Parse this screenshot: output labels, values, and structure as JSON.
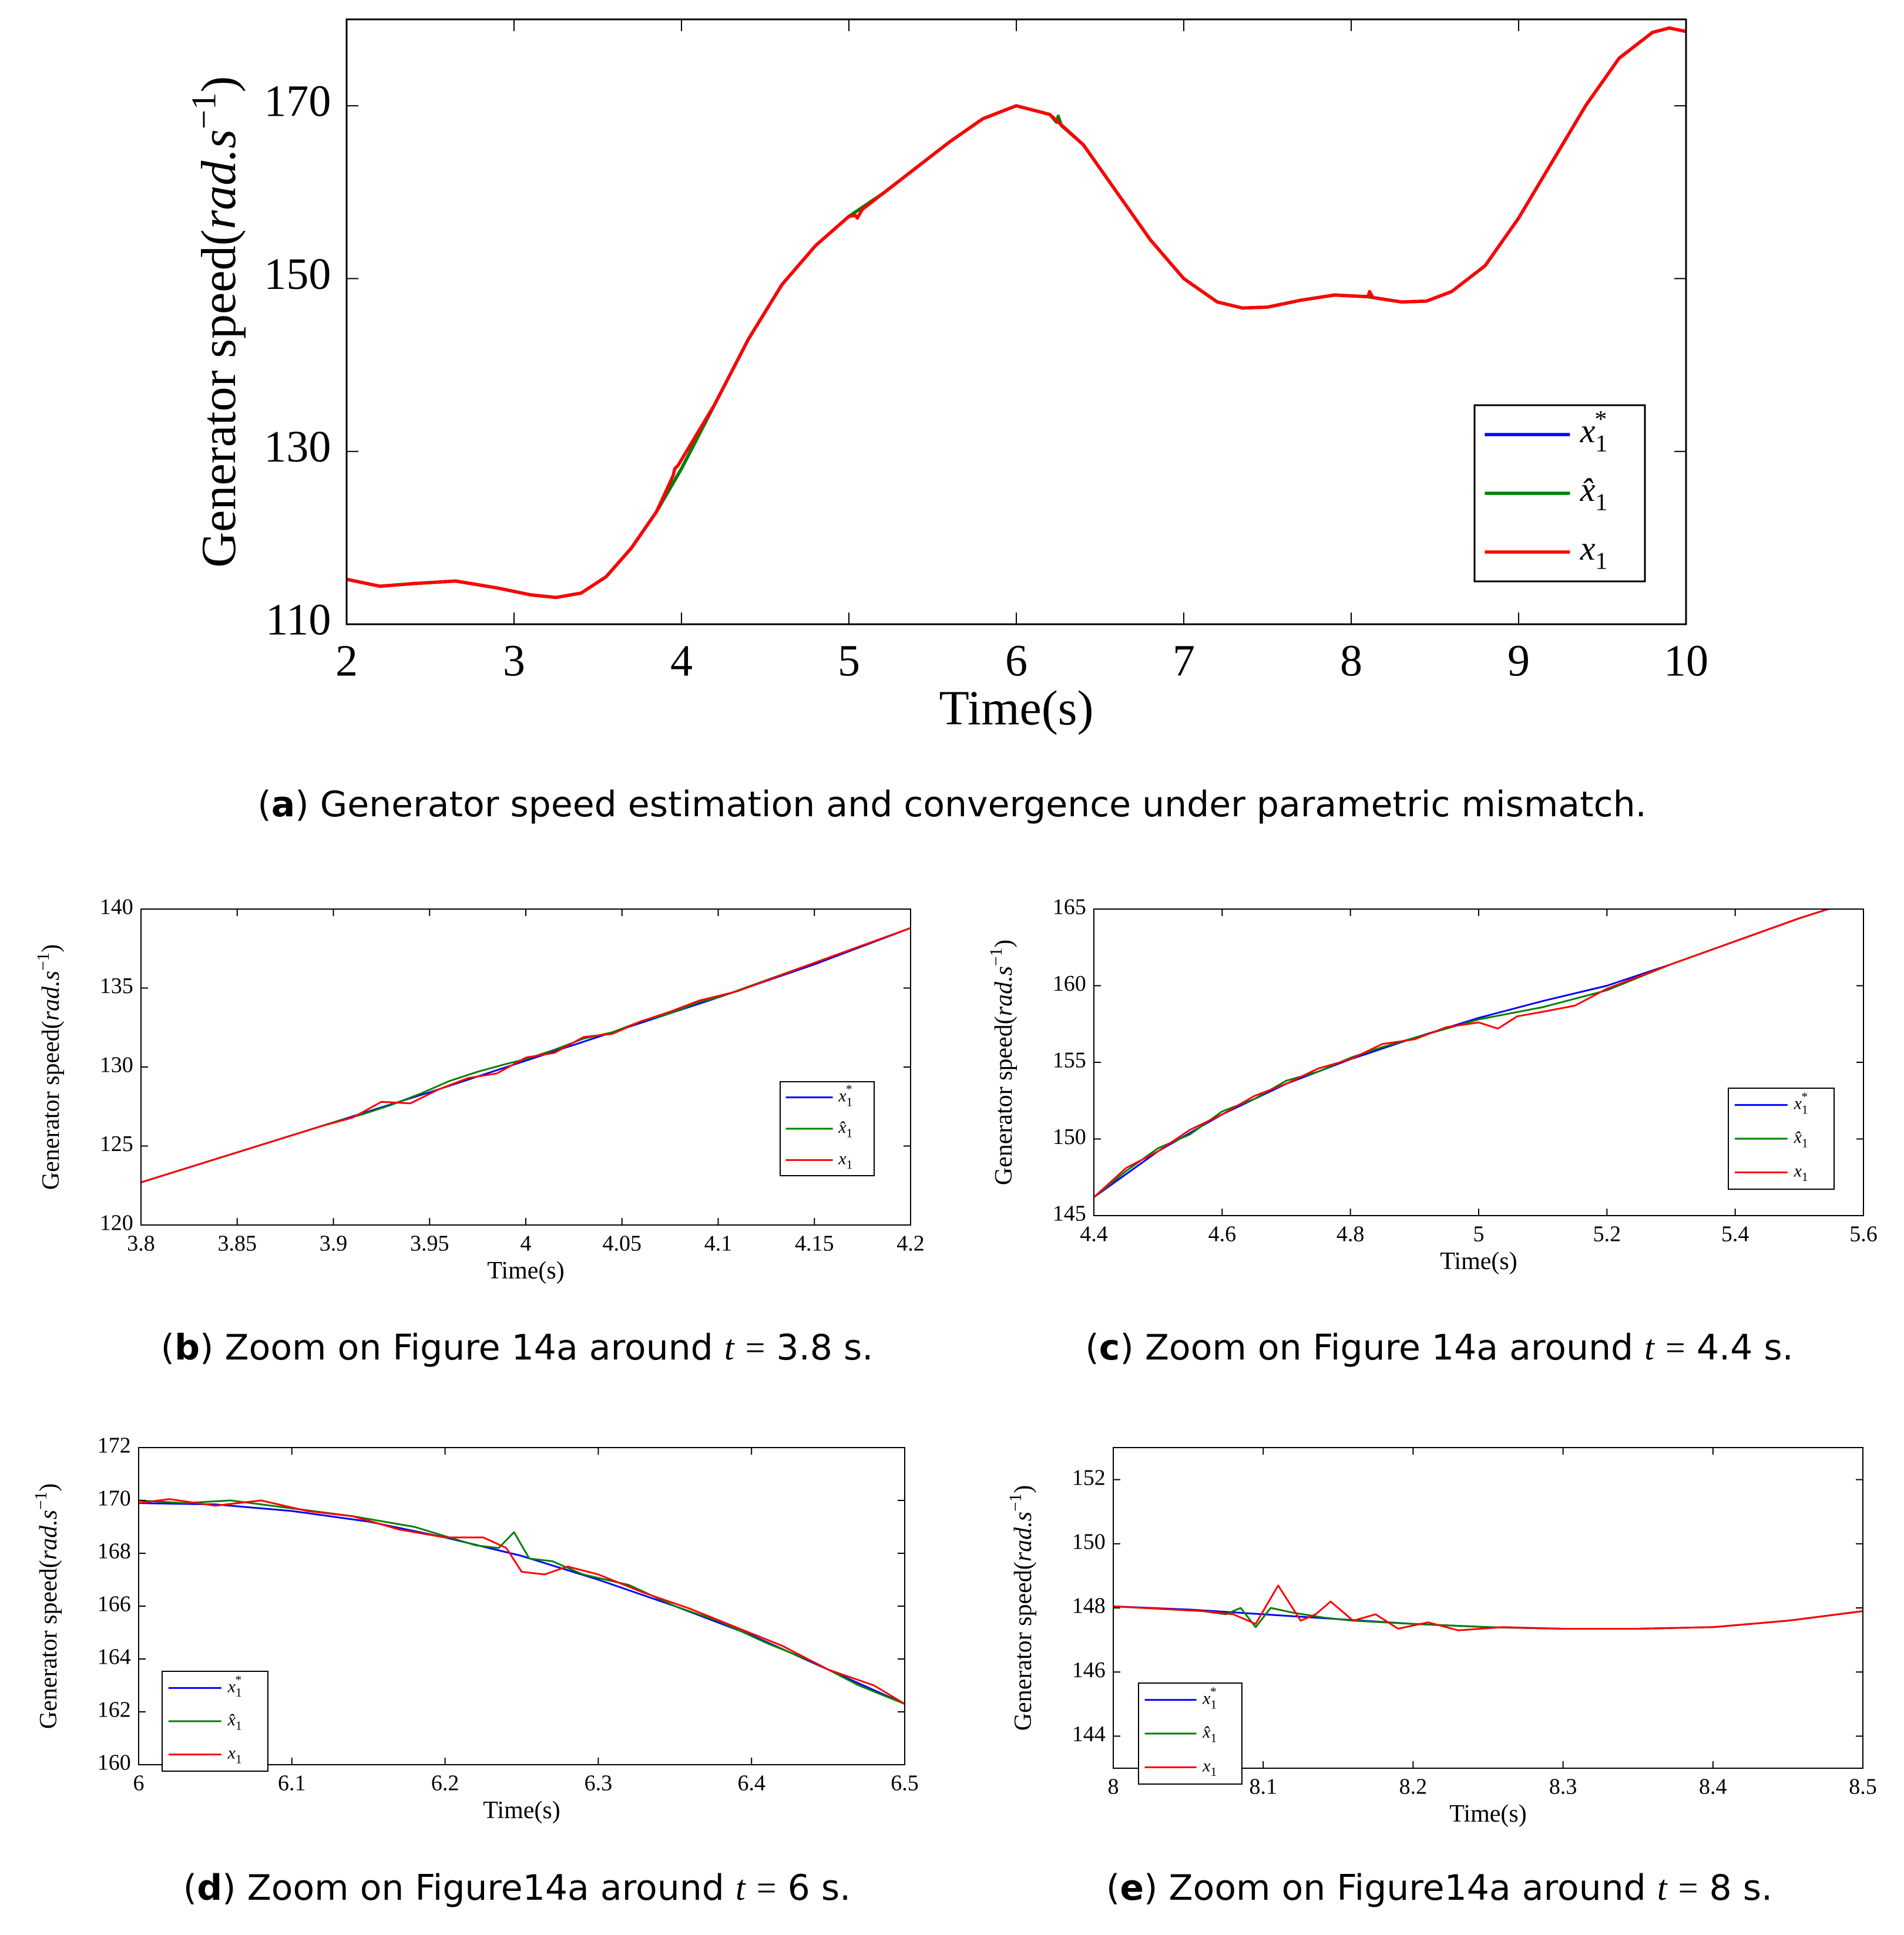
{
  "colors": {
    "ref": "#0000ff",
    "est": "#008000",
    "act": "#ff0000",
    "axis": "#000000",
    "background": "#ffffff"
  },
  "legend": {
    "ref": {
      "base": "x",
      "sub": "1",
      "sup": "*"
    },
    "est": {
      "base": "x̂",
      "sub": "1"
    },
    "act": {
      "base": "x",
      "sub": "1"
    }
  },
  "captions": {
    "a": {
      "letter": "a",
      "text": "Generator speed estimation and convergence under parametric mismatch."
    },
    "b": {
      "letter": "b",
      "pre": "Zoom on Figure 14a around",
      "var": "t",
      "op": "=",
      "post": "3.8 s."
    },
    "c": {
      "letter": "c",
      "pre": "Zoom on Figure 14a around",
      "var": "t",
      "op": "=",
      "post": "4.4 s."
    },
    "d": {
      "letter": "d",
      "pre": "Zoom on Figure14a around",
      "var": "t",
      "op": "=",
      "post": "6 s."
    },
    "e": {
      "letter": "e",
      "pre": "Zoom on Figure14a around",
      "var": "t",
      "op": "=",
      "post": "8 s."
    }
  },
  "chart_data": [
    {
      "id": "a",
      "type": "line",
      "title": "",
      "xlabel": "Time(s)",
      "ylabel": {
        "text": "Generator speed",
        "unit": "rad.s",
        "exp": "−1"
      },
      "xlim": [
        2,
        10
      ],
      "ylim": [
        110,
        180
      ],
      "xticks": [
        2,
        3,
        4,
        5,
        6,
        7,
        8,
        9,
        10
      ],
      "yticks": [
        110,
        130,
        150,
        170
      ],
      "xtick_labels": [
        "2",
        "3",
        "4",
        "5",
        "6",
        "7",
        "8",
        "9",
        "10"
      ],
      "ytick_labels": [
        "110",
        "130",
        "150",
        "170"
      ],
      "legend_position": "bottom-right",
      "series": [
        {
          "name": "x1*",
          "key": "ref",
          "x": [
            2.0,
            2.2,
            2.4,
            2.65,
            2.9,
            3.1,
            3.25,
            3.4,
            3.55,
            3.7,
            3.85,
            4.0,
            4.2,
            4.4,
            4.6,
            4.8,
            5.0,
            5.2,
            5.4,
            5.6,
            5.8,
            6.0,
            6.2,
            6.4,
            6.6,
            6.8,
            7.0,
            7.2,
            7.35,
            7.5,
            7.7,
            7.9,
            8.1,
            8.3,
            8.45,
            8.6,
            8.8,
            9.0,
            9.2,
            9.4,
            9.6,
            9.8,
            9.9,
            10.0
          ],
          "y": [
            115.2,
            114.4,
            114.7,
            115.0,
            114.2,
            113.4,
            113.1,
            113.6,
            115.5,
            118.8,
            123.0,
            128.0,
            135.5,
            143.0,
            149.3,
            153.8,
            157.2,
            159.8,
            162.8,
            165.8,
            168.5,
            170.0,
            169.0,
            165.5,
            160.0,
            154.5,
            150.0,
            147.3,
            146.6,
            146.7,
            147.5,
            148.1,
            147.9,
            147.3,
            147.4,
            148.5,
            151.5,
            157.0,
            163.5,
            170.0,
            175.5,
            178.5,
            179.0,
            178.6
          ]
        },
        {
          "name": "x̂1",
          "key": "est",
          "x": [
            2.0,
            2.2,
            2.4,
            2.65,
            2.9,
            3.1,
            3.25,
            3.4,
            3.55,
            3.7,
            3.85,
            4.0,
            4.2,
            4.4,
            4.6,
            4.8,
            5.0,
            5.2,
            5.4,
            5.6,
            5.8,
            6.0,
            6.2,
            6.24,
            6.25,
            6.27,
            6.4,
            6.6,
            6.8,
            7.0,
            7.2,
            7.35,
            7.5,
            7.7,
            7.9,
            8.1,
            8.3,
            8.45,
            8.6,
            8.8,
            9.0,
            9.2,
            9.4,
            9.6,
            9.8,
            9.9,
            10.0
          ],
          "y": [
            115.2,
            114.4,
            114.7,
            115.0,
            114.2,
            113.4,
            113.1,
            113.6,
            115.5,
            118.8,
            123.0,
            128.0,
            135.5,
            143.0,
            149.3,
            153.8,
            157.2,
            159.8,
            162.8,
            165.8,
            168.5,
            170.0,
            169.0,
            168.1,
            168.8,
            167.7,
            165.5,
            160.0,
            154.5,
            150.0,
            147.3,
            146.6,
            146.7,
            147.5,
            148.1,
            147.9,
            147.3,
            147.4,
            148.5,
            151.5,
            157.0,
            163.5,
            170.0,
            175.5,
            178.5,
            179.0,
            178.6
          ]
        },
        {
          "name": "x1",
          "key": "act",
          "x": [
            2.0,
            2.2,
            2.4,
            2.65,
            2.9,
            3.1,
            3.25,
            3.4,
            3.55,
            3.7,
            3.85,
            3.95,
            3.96,
            3.98,
            4.2,
            4.4,
            4.6,
            4.8,
            5.0,
            5.04,
            5.05,
            5.08,
            5.2,
            5.4,
            5.6,
            5.8,
            6.0,
            6.2,
            6.4,
            6.6,
            6.8,
            7.0,
            7.2,
            7.35,
            7.5,
            7.7,
            7.9,
            8.1,
            8.11,
            8.13,
            8.3,
            8.45,
            8.6,
            8.8,
            9.0,
            9.2,
            9.4,
            9.6,
            9.8,
            9.9,
            10.0
          ],
          "y": [
            115.2,
            114.4,
            114.7,
            115.0,
            114.2,
            113.4,
            113.1,
            113.6,
            115.5,
            118.8,
            123.0,
            127.2,
            128.0,
            128.4,
            135.5,
            143.0,
            149.3,
            153.8,
            157.2,
            157.3,
            157.0,
            158.0,
            159.8,
            162.8,
            165.8,
            168.5,
            170.0,
            169.0,
            165.5,
            160.0,
            154.5,
            150.0,
            147.3,
            146.6,
            146.7,
            147.5,
            148.1,
            147.9,
            148.5,
            147.8,
            147.3,
            147.4,
            148.5,
            151.5,
            157.0,
            163.5,
            170.0,
            175.5,
            178.5,
            179.0,
            178.6
          ]
        }
      ]
    },
    {
      "id": "b",
      "type": "line",
      "title": "",
      "xlabel": "Time(s)",
      "ylabel": {
        "text": "Generator speed",
        "unit": "rad.s",
        "exp": "−1"
      },
      "xlim": [
        3.8,
        4.2
      ],
      "ylim": [
        120,
        140
      ],
      "xticks": [
        3.8,
        3.85,
        3.9,
        3.95,
        4.0,
        4.05,
        4.1,
        4.15,
        4.2
      ],
      "yticks": [
        120,
        125,
        130,
        135,
        140
      ],
      "xtick_labels": [
        "3.8",
        "3.85",
        "3.9",
        "3.95",
        "4",
        "4.05",
        "4.1",
        "4.15",
        "4.2"
      ],
      "ytick_labels": [
        "120",
        "125",
        "130",
        "135",
        "140"
      ],
      "legend_position": "right",
      "series": [
        {
          "name": "x1*",
          "key": "ref",
          "x": [
            3.8,
            3.85,
            3.9,
            3.95,
            4.0,
            4.05,
            4.1,
            4.15,
            4.2
          ],
          "y": [
            122.7,
            124.6,
            126.5,
            128.4,
            130.4,
            132.4,
            134.4,
            136.5,
            138.8
          ]
        },
        {
          "name": "x̂1",
          "key": "est",
          "x": [
            3.8,
            3.85,
            3.9,
            3.915,
            3.93,
            3.945,
            3.96,
            3.975,
            3.99,
            4.0,
            4.015,
            4.03,
            4.045,
            4.06,
            4.075,
            4.09,
            4.1,
            4.15,
            4.2
          ],
          "y": [
            122.7,
            124.6,
            126.5,
            127.0,
            127.6,
            128.3,
            129.1,
            129.7,
            130.2,
            130.5,
            131.1,
            131.8,
            132.2,
            132.9,
            133.4,
            134.1,
            134.4,
            136.6,
            138.8
          ]
        },
        {
          "name": "x1",
          "key": "act",
          "x": [
            3.8,
            3.85,
            3.895,
            3.91,
            3.925,
            3.94,
            3.955,
            3.97,
            3.985,
            4.0,
            4.015,
            4.03,
            4.045,
            4.06,
            4.075,
            4.09,
            4.11,
            4.15,
            4.2
          ],
          "y": [
            122.7,
            124.6,
            126.3,
            126.8,
            127.8,
            127.7,
            128.6,
            129.3,
            129.6,
            130.6,
            130.9,
            131.9,
            132.1,
            132.9,
            133.5,
            134.2,
            134.8,
            136.6,
            138.8
          ]
        }
      ]
    },
    {
      "id": "c",
      "type": "line",
      "title": "",
      "xlabel": "Time(s)",
      "ylabel": {
        "text": "Generator speed",
        "unit": "rad.s",
        "exp": "−1"
      },
      "xlim": [
        4.4,
        5.6
      ],
      "ylim": [
        145,
        165
      ],
      "xticks": [
        4.4,
        4.6,
        4.8,
        5.0,
        5.2,
        5.4,
        5.6
      ],
      "yticks": [
        145,
        150,
        155,
        160,
        165
      ],
      "xtick_labels": [
        "4.4",
        "4.6",
        "4.8",
        "5",
        "5.2",
        "5.4",
        "5.6"
      ],
      "ytick_labels": [
        "145",
        "150",
        "155",
        "160",
        "165"
      ],
      "legend_position": "right",
      "series": [
        {
          "name": "x1*",
          "key": "ref",
          "x": [
            4.4,
            4.5,
            4.6,
            4.7,
            4.8,
            4.9,
            5.0,
            5.1,
            5.2,
            5.3,
            5.4,
            5.5,
            5.56
          ],
          "y": [
            146.2,
            149.2,
            151.6,
            153.6,
            155.2,
            156.6,
            157.9,
            159.0,
            160.0,
            161.4,
            162.9,
            164.4,
            165.2
          ]
        },
        {
          "name": "x̂1",
          "key": "est",
          "x": [
            4.4,
            4.45,
            4.5,
            4.55,
            4.6,
            4.65,
            4.7,
            4.75,
            4.8,
            4.85,
            4.9,
            4.95,
            5.0,
            5.1,
            5.2,
            5.3,
            5.4,
            5.5,
            5.56
          ],
          "y": [
            146.2,
            147.9,
            149.4,
            150.3,
            151.8,
            152.6,
            153.8,
            154.4,
            155.3,
            156.0,
            156.6,
            157.2,
            157.8,
            158.6,
            159.7,
            161.4,
            162.9,
            164.4,
            165.2
          ]
        },
        {
          "name": "x1",
          "key": "act",
          "x": [
            4.4,
            4.45,
            4.5,
            4.55,
            4.6,
            4.65,
            4.7,
            4.75,
            4.8,
            4.85,
            4.9,
            4.95,
            5.0,
            5.03,
            5.06,
            5.1,
            5.15,
            5.2,
            5.3,
            5.4,
            5.5,
            5.56
          ],
          "y": [
            146.2,
            148.1,
            149.2,
            150.6,
            151.6,
            152.8,
            153.6,
            154.6,
            155.2,
            156.2,
            156.5,
            157.3,
            157.6,
            157.2,
            158.0,
            158.3,
            158.7,
            159.8,
            161.4,
            162.9,
            164.4,
            165.2
          ]
        }
      ]
    },
    {
      "id": "d",
      "type": "line",
      "title": "",
      "xlabel": "Time(s)",
      "ylabel": {
        "text": "Generator speed",
        "unit": "rad.s",
        "exp": "−1"
      },
      "xlim": [
        6.0,
        6.5
      ],
      "ylim": [
        160,
        172
      ],
      "xticks": [
        6.0,
        6.1,
        6.2,
        6.3,
        6.4,
        6.5
      ],
      "yticks": [
        160,
        162,
        164,
        166,
        168,
        170,
        172
      ],
      "xtick_labels": [
        "6",
        "6.1",
        "6.2",
        "6.3",
        "6.4",
        "6.5"
      ],
      "ytick_labels": [
        "160",
        "162",
        "164",
        "166",
        "168",
        "170",
        "172"
      ],
      "legend_position": "bottom-left",
      "series": [
        {
          "name": "x1*",
          "key": "ref",
          "x": [
            6.0,
            6.05,
            6.1,
            6.15,
            6.2,
            6.25,
            6.3,
            6.35,
            6.4,
            6.45,
            6.5
          ],
          "y": [
            169.9,
            169.85,
            169.6,
            169.2,
            168.6,
            167.9,
            167.0,
            166.0,
            164.9,
            163.6,
            162.3
          ]
        },
        {
          "name": "x̂1",
          "key": "est",
          "x": [
            6.0,
            6.03,
            6.06,
            6.1,
            6.14,
            6.18,
            6.22,
            6.235,
            6.245,
            6.255,
            6.27,
            6.29,
            6.32,
            6.35,
            6.38,
            6.41,
            6.44,
            6.47,
            6.5
          ],
          "y": [
            170.0,
            169.9,
            170.0,
            169.7,
            169.4,
            169.0,
            168.3,
            168.2,
            168.8,
            167.8,
            167.7,
            167.2,
            166.8,
            166.0,
            165.4,
            164.6,
            163.9,
            163.0,
            162.3
          ]
        },
        {
          "name": "x1",
          "key": "act",
          "x": [
            6.0,
            6.02,
            6.05,
            6.08,
            6.11,
            6.14,
            6.17,
            6.2,
            6.225,
            6.24,
            6.25,
            6.265,
            6.28,
            6.3,
            6.33,
            6.36,
            6.39,
            6.42,
            6.45,
            6.48,
            6.5
          ],
          "y": [
            169.9,
            170.05,
            169.8,
            170.0,
            169.6,
            169.4,
            168.9,
            168.6,
            168.6,
            168.2,
            167.3,
            167.2,
            167.5,
            167.2,
            166.5,
            165.9,
            165.2,
            164.5,
            163.6,
            163.0,
            162.3
          ]
        }
      ]
    },
    {
      "id": "e",
      "type": "line",
      "title": "",
      "xlabel": "Time(s)",
      "ylabel": {
        "text": "Generator speed",
        "unit": "rad.s",
        "exp": "−1"
      },
      "xlim": [
        8.0,
        8.5
      ],
      "ylim": [
        143,
        153
      ],
      "xticks": [
        8.0,
        8.1,
        8.2,
        8.3,
        8.4,
        8.5
      ],
      "yticks": [
        144,
        146,
        148,
        150,
        152
      ],
      "xtick_labels": [
        "8",
        "8.1",
        "8.2",
        "8.3",
        "8.4",
        "8.5"
      ],
      "ytick_labels": [
        "144",
        "146",
        "148",
        "150",
        "152"
      ],
      "legend_position": "bottom-left",
      "series": [
        {
          "name": "x1*",
          "key": "ref",
          "x": [
            8.0,
            8.05,
            8.1,
            8.15,
            8.2,
            8.25,
            8.3,
            8.35,
            8.4,
            8.45,
            8.5
          ],
          "y": [
            148.05,
            147.95,
            147.8,
            147.65,
            147.5,
            147.4,
            147.35,
            147.35,
            147.4,
            147.6,
            147.9
          ]
        },
        {
          "name": "x̂1",
          "key": "est",
          "x": [
            8.0,
            8.06,
            8.075,
            8.085,
            8.095,
            8.105,
            8.12,
            8.14,
            8.16,
            8.2,
            8.25,
            8.3,
            8.35,
            8.4,
            8.45,
            8.5
          ],
          "y": [
            148.05,
            147.9,
            147.8,
            148.0,
            147.4,
            148.0,
            147.85,
            147.7,
            147.6,
            147.5,
            147.4,
            147.35,
            147.35,
            147.4,
            147.6,
            147.9
          ]
        },
        {
          "name": "x1",
          "key": "act",
          "x": [
            8.0,
            8.06,
            8.08,
            8.095,
            8.11,
            8.125,
            8.135,
            8.145,
            8.16,
            8.175,
            8.19,
            8.21,
            8.23,
            8.26,
            8.3,
            8.35,
            8.4,
            8.45,
            8.5
          ],
          "y": [
            148.05,
            147.9,
            147.8,
            147.5,
            148.7,
            147.6,
            147.8,
            148.2,
            147.6,
            147.8,
            147.35,
            147.55,
            147.3,
            147.4,
            147.35,
            147.35,
            147.4,
            147.6,
            147.9
          ]
        }
      ]
    }
  ]
}
